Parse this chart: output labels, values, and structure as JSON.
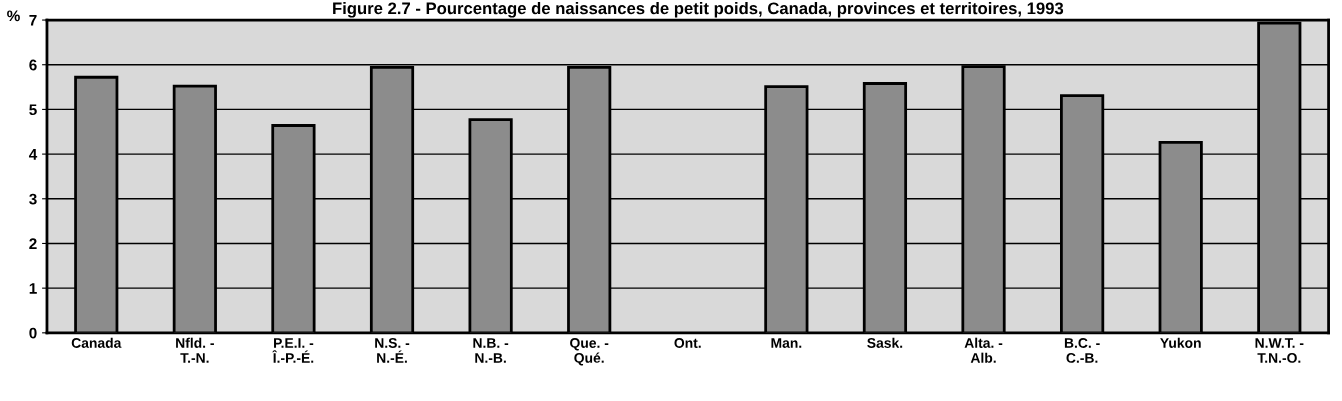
{
  "chart_data": {
    "type": "bar",
    "title": "Figure 2.7 - Pourcentage de naissances de petit poids, Canada, provinces et territoires, 1993",
    "ylabel": "%",
    "categories": [
      "Canada",
      "Nfld. -\nT.-N.",
      "P.E.I. -\nÎ.-P.-É.",
      "N.S. -\nN.-É.",
      "N.B. -\nN.-B.",
      "Que. -\nQué.",
      "Ont.",
      "Man.",
      "Sask.",
      "Alta. -\nAlb.",
      "B.C. -\nC.-B.",
      "Yukon",
      "N.W.T. -\nT.N.-O."
    ],
    "values": [
      5.72,
      5.52,
      4.64,
      5.94,
      4.77,
      5.94,
      null,
      5.51,
      5.58,
      5.96,
      5.31,
      4.26,
      6.93
    ],
    "color": "#8c8c8c",
    "ylim": [
      0,
      7
    ],
    "yticks": [
      0,
      1,
      2,
      3,
      4,
      5,
      6,
      7
    ],
    "grid": "y"
  }
}
